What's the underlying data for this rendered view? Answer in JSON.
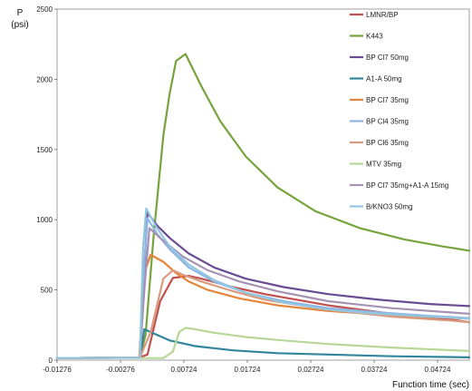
{
  "chart_data": {
    "type": "line",
    "ylabel_line1": "P",
    "ylabel_line2": "(psi)",
    "xlabel": "Function time (sec)",
    "xlim": [
      -0.01276,
      0.05224
    ],
    "ylim": [
      0,
      2500
    ],
    "xticks": [
      "-0.01276",
      "-0.00276",
      "0.00724",
      "0.01724",
      "0.02724",
      "0.03724",
      "0.04724"
    ],
    "yticks": [
      "0",
      "500",
      "1000",
      "1500",
      "2000",
      "2500"
    ],
    "grid": false,
    "legend_position": "top-right",
    "series": [
      {
        "name": "LMNR/BP",
        "color": "#c0504d",
        "x": [
          -0.01276,
          0.0002,
          0.0015,
          0.0035,
          0.0055,
          0.008,
          0.01,
          0.015,
          0.02,
          0.03,
          0.04,
          0.05,
          0.05224
        ],
        "y": [
          15,
          18,
          40,
          420,
          585,
          600,
          580,
          520,
          470,
          390,
          330,
          285,
          270
        ]
      },
      {
        "name": "K443",
        "color": "#77a33c",
        "x": [
          -0.01276,
          0.0003,
          0.0012,
          0.0025,
          0.004,
          0.005,
          0.006,
          0.0075,
          0.01,
          0.013,
          0.017,
          0.022,
          0.028,
          0.035,
          0.042,
          0.048,
          0.05224
        ],
        "y": [
          15,
          18,
          180,
          900,
          1600,
          1900,
          2130,
          2180,
          1950,
          1700,
          1450,
          1230,
          1060,
          940,
          860,
          810,
          780
        ]
      },
      {
        "name": "BP Cl7 50mg",
        "color": "#6a4c93",
        "x": [
          -0.01276,
          0.0003,
          0.0008,
          0.0015,
          0.003,
          0.005,
          0.008,
          0.012,
          0.017,
          0.023,
          0.03,
          0.038,
          0.046,
          0.05224
        ],
        "y": [
          15,
          18,
          500,
          1050,
          960,
          870,
          760,
          660,
          580,
          520,
          470,
          430,
          400,
          385
        ]
      },
      {
        "name": "A1-A 50mg",
        "color": "#31859c",
        "x": [
          -0.01276,
          0.0003,
          0.001,
          0.0025,
          0.005,
          0.009,
          0.015,
          0.022,
          0.03,
          0.04,
          0.05224
        ],
        "y": [
          15,
          18,
          220,
          190,
          140,
          100,
          70,
          50,
          40,
          28,
          20
        ]
      },
      {
        "name": "BP Cl7 35mg",
        "color": "#e6843a",
        "x": [
          -0.01276,
          0.0002,
          0.001,
          0.002,
          0.004,
          0.006,
          0.008,
          0.011,
          0.016,
          0.022,
          0.03,
          0.04,
          0.05224
        ],
        "y": [
          15,
          18,
          620,
          750,
          700,
          620,
          560,
          500,
          440,
          390,
          350,
          320,
          295
        ]
      },
      {
        "name": "BP Cl4 35mg",
        "color": "#8eb4e3",
        "x": [
          -0.01276,
          0.0003,
          0.001,
          0.0015,
          0.003,
          0.005,
          0.008,
          0.012,
          0.017,
          0.023,
          0.03,
          0.038,
          0.046,
          0.05224
        ],
        "y": [
          15,
          18,
          700,
          1010,
          900,
          790,
          660,
          560,
          480,
          420,
          370,
          340,
          315,
          300
        ]
      },
      {
        "name": "BP Cl6 35mg",
        "color": "#d99a7e",
        "x": [
          -0.01276,
          0.0003,
          0.002,
          0.004,
          0.0055,
          0.007,
          0.01,
          0.015,
          0.02,
          0.03,
          0.04,
          0.05,
          0.05224
        ],
        "y": [
          15,
          18,
          200,
          580,
          640,
          610,
          560,
          490,
          430,
          360,
          310,
          280,
          270
        ]
      },
      {
        "name": "MTV 35mg",
        "color": "#b7d795",
        "x": [
          -0.01276,
          0.004,
          0.0055,
          0.0065,
          0.0075,
          0.009,
          0.012,
          0.017,
          0.023,
          0.03,
          0.04,
          0.05,
          0.05224
        ],
        "y": [
          15,
          15,
          60,
          200,
          230,
          220,
          195,
          165,
          140,
          115,
          90,
          70,
          65
        ]
      },
      {
        "name": "BP Cl7 35mg+A1-A 15mg",
        "color": "#a592b3",
        "x": [
          -0.01276,
          0.0003,
          0.001,
          0.0018,
          0.004,
          0.007,
          0.011,
          0.016,
          0.022,
          0.03,
          0.04,
          0.05224
        ],
        "y": [
          15,
          18,
          500,
          940,
          850,
          740,
          640,
          560,
          490,
          420,
          370,
          330
        ]
      },
      {
        "name": "B/KNO3 50mg",
        "color": "#93c6e0",
        "x": [
          -0.01276,
          0.0003,
          0.0008,
          0.0013,
          0.003,
          0.005,
          0.008,
          0.012,
          0.017,
          0.023,
          0.03,
          0.038,
          0.046,
          0.05224
        ],
        "y": [
          15,
          18,
          800,
          1080,
          940,
          810,
          680,
          570,
          480,
          410,
          360,
          330,
          310,
          295
        ]
      }
    ]
  }
}
